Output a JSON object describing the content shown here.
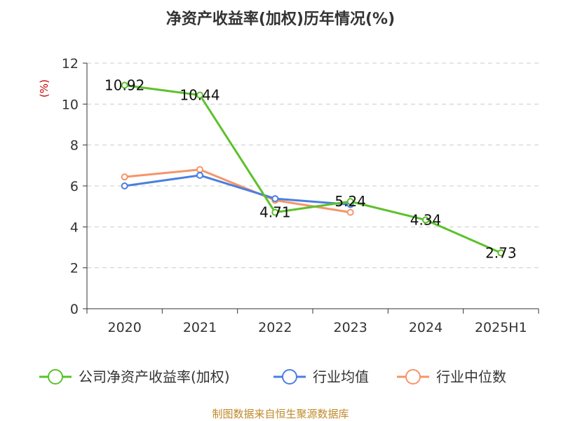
{
  "chart_data": {
    "type": "line",
    "title": "净资产收益率(加权)历年情况(%)",
    "ylabel": "(%)",
    "xlabel": "",
    "categories": [
      "2020",
      "2021",
      "2022",
      "2023",
      "2024",
      "2025H1"
    ],
    "ylim": [
      0,
      12
    ],
    "yticks": [
      0,
      2,
      4,
      6,
      8,
      10,
      12
    ],
    "grid": true,
    "legend_position": "bottom",
    "series": [
      {
        "name": "公司净资产收益率(加权)",
        "color": "#5cc12a",
        "values": [
          10.92,
          10.44,
          4.71,
          5.24,
          4.34,
          2.73
        ],
        "labels": [
          "10.92",
          "10.44",
          "4.71",
          "5.24",
          "4.34",
          "2.73"
        ]
      },
      {
        "name": "行业均值",
        "color": "#4a7fe0",
        "values": [
          6.0,
          6.52,
          5.38,
          5.09,
          null,
          null
        ]
      },
      {
        "name": "行业中位数",
        "color": "#f5956a",
        "values": [
          6.44,
          6.8,
          5.3,
          4.71,
          null,
          null
        ]
      }
    ]
  },
  "footer": {
    "source": "制图数据来自恒生聚源数据库"
  }
}
